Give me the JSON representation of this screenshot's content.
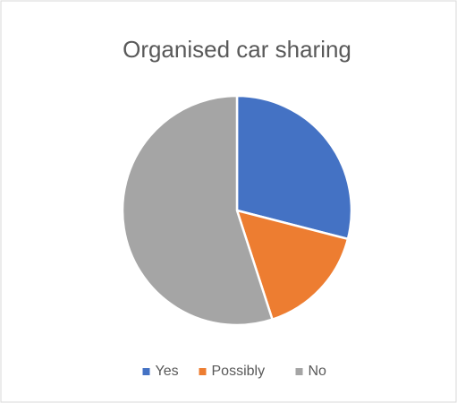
{
  "chart_data": {
    "type": "pie",
    "title": "Organised car sharing",
    "categories": [
      "Yes",
      "Possibly",
      "No"
    ],
    "values": [
      29,
      16,
      55
    ],
    "colors": [
      "#4472c4",
      "#ed7d31",
      "#a5a5a5"
    ],
    "legend": "bottom"
  }
}
